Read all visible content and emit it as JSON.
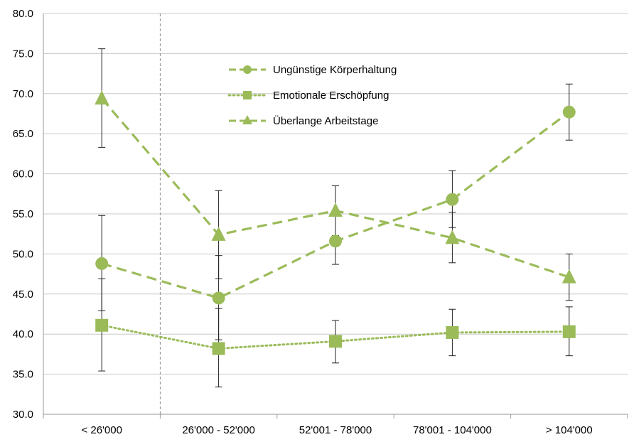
{
  "chart_data": {
    "type": "line",
    "title": "",
    "xlabel": "",
    "ylabel": "",
    "categories": [
      "< 26'000",
      "26'000 - 52'000",
      "52'001 - 78'000",
      "78'001 - 104'000",
      "> 104'000"
    ],
    "ylim": [
      30.0,
      80.0
    ],
    "yticks": [
      "30.0",
      "35.0",
      "40.0",
      "45.0",
      "50.0",
      "55.0",
      "60.0",
      "65.0",
      "70.0",
      "75.0",
      "80.0"
    ],
    "grid": true,
    "reference_line_after_category": 0,
    "legend_position": "top-center",
    "series_color": "#9bbb59",
    "series": [
      {
        "name": "Ungünstige Körperhaltung",
        "marker": "circle",
        "dash": "dashed",
        "values": [
          48.8,
          44.5,
          51.6,
          56.8,
          67.7
        ],
        "error_low": [
          42.9,
          39.3,
          48.7,
          53.3,
          64.2
        ],
        "error_high": [
          54.8,
          49.8,
          55.3,
          60.4,
          71.2
        ]
      },
      {
        "name": "Emotionale Erschöpfung",
        "marker": "square",
        "dash": "dotted",
        "values": [
          41.1,
          38.2,
          39.1,
          40.2,
          40.3
        ],
        "error_low": [
          35.4,
          33.4,
          36.4,
          37.3,
          37.3
        ],
        "error_high": [
          46.9,
          43.2,
          41.7,
          43.1,
          43.4
        ]
      },
      {
        "name": "Überlange Arbeitstage",
        "marker": "triangle",
        "dash": "dashed",
        "values": [
          69.4,
          52.4,
          55.4,
          52.0,
          47.1
        ],
        "error_low": [
          63.3,
          46.9,
          52.3,
          48.9,
          44.2
        ],
        "error_high": [
          75.6,
          57.9,
          58.5,
          55.2,
          50.0
        ]
      }
    ]
  }
}
